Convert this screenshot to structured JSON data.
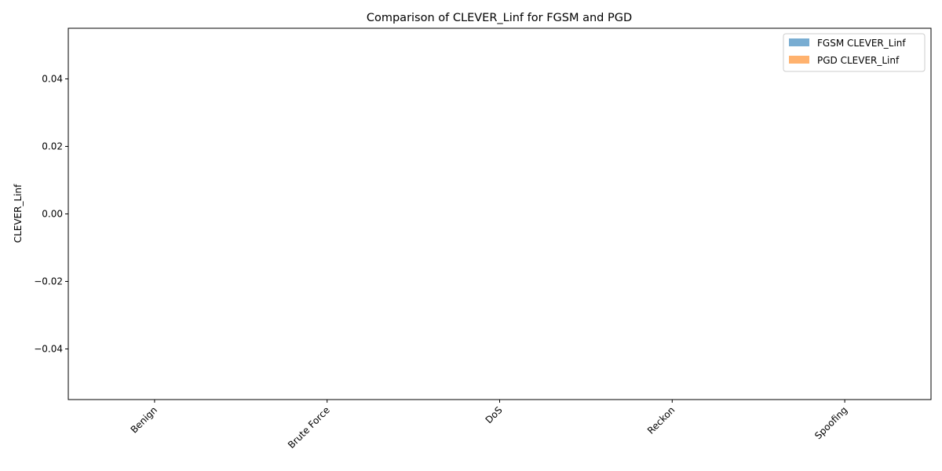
{
  "chart_data": {
    "type": "bar",
    "title": "Comparison of CLEVER_Linf for FGSM and PGD",
    "xlabel": "",
    "ylabel": "CLEVER_Linf",
    "categories": [
      "Benign",
      "Brute Force",
      "DoS",
      "Reckon",
      "Spoofing"
    ],
    "series": [
      {
        "name": "FGSM CLEVER_Linf",
        "values": [
          0,
          0,
          0,
          0,
          0
        ],
        "color": "#1f77b4"
      },
      {
        "name": "PGD CLEVER_Linf",
        "values": [
          0,
          0,
          0,
          0,
          0
        ],
        "color": "#ff7f0e"
      }
    ],
    "ylim": [
      -0.055,
      0.055
    ],
    "yticks": [
      -0.04,
      -0.02,
      0.0,
      0.02,
      0.04
    ],
    "ytick_labels": [
      "−0.04",
      "−0.02",
      "0.00",
      "0.02",
      "0.04"
    ],
    "grid": false,
    "legend_position": "top-right"
  }
}
